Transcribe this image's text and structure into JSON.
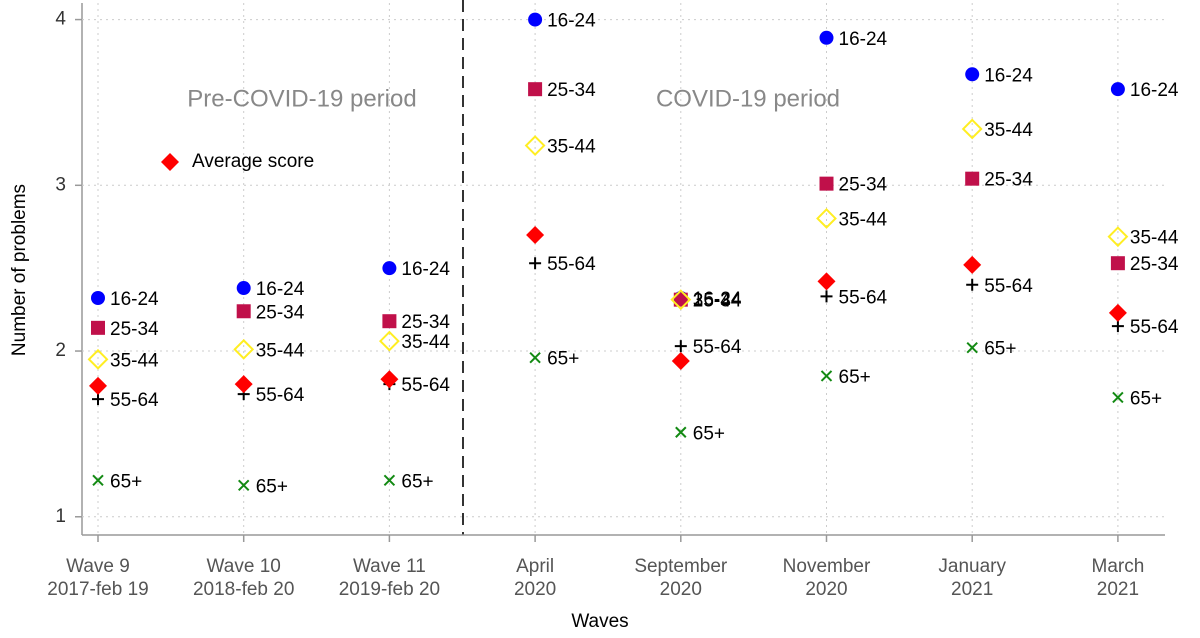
{
  "chart_data": {
    "type": "scatter",
    "x_title": "Waves",
    "y_title": "Number of problems",
    "categories": [
      [
        "Wave 9",
        "2017-feb 19"
      ],
      [
        "Wave 10",
        "2018-feb 20"
      ],
      [
        "Wave 11",
        "2019-feb 20"
      ],
      [
        "April",
        "2020"
      ],
      [
        "September",
        "2020"
      ],
      [
        "November",
        "2020"
      ],
      [
        "January",
        "2021"
      ],
      [
        "March",
        "2021"
      ]
    ],
    "annotations": [
      "Pre-COVID-19 period",
      "COVID-19 period"
    ],
    "ylim": [
      0.89,
      4.1
    ],
    "yticks": [
      1,
      2,
      3,
      4
    ],
    "grid": true,
    "legend": "upper left",
    "series": [
      {
        "name": "16-24",
        "color": "#0000ff",
        "marker": "circle",
        "point_labels": true,
        "values": [
          2.32,
          2.38,
          2.5,
          4.0,
          2.32,
          3.89,
          3.67,
          3.58
        ]
      },
      {
        "name": "25-34",
        "color": "#c0104a",
        "marker": "square",
        "point_labels": true,
        "values": [
          2.14,
          2.24,
          2.18,
          3.58,
          2.31,
          3.01,
          3.04,
          2.53
        ]
      },
      {
        "name": "35-44",
        "color": "#ffee22",
        "marker": "diamond-open",
        "point_labels": true,
        "values": [
          1.95,
          2.01,
          2.06,
          3.24,
          2.31,
          2.8,
          3.34,
          2.69
        ]
      },
      {
        "name": "55-64",
        "color": "#000000",
        "marker": "plus",
        "point_labels": true,
        "values": [
          1.71,
          1.74,
          1.8,
          2.53,
          2.03,
          2.33,
          2.4,
          2.15
        ]
      },
      {
        "name": "65+",
        "color": "#138a13",
        "marker": "cross",
        "point_labels": true,
        "values": [
          1.22,
          1.19,
          1.22,
          1.96,
          1.51,
          1.85,
          2.02,
          1.72
        ]
      },
      {
        "name": "Average score",
        "color": "#ff0000",
        "marker": "diamond",
        "legend": true,
        "values": [
          1.79,
          1.8,
          1.83,
          2.7,
          1.94,
          2.42,
          2.52,
          2.23
        ]
      }
    ]
  }
}
